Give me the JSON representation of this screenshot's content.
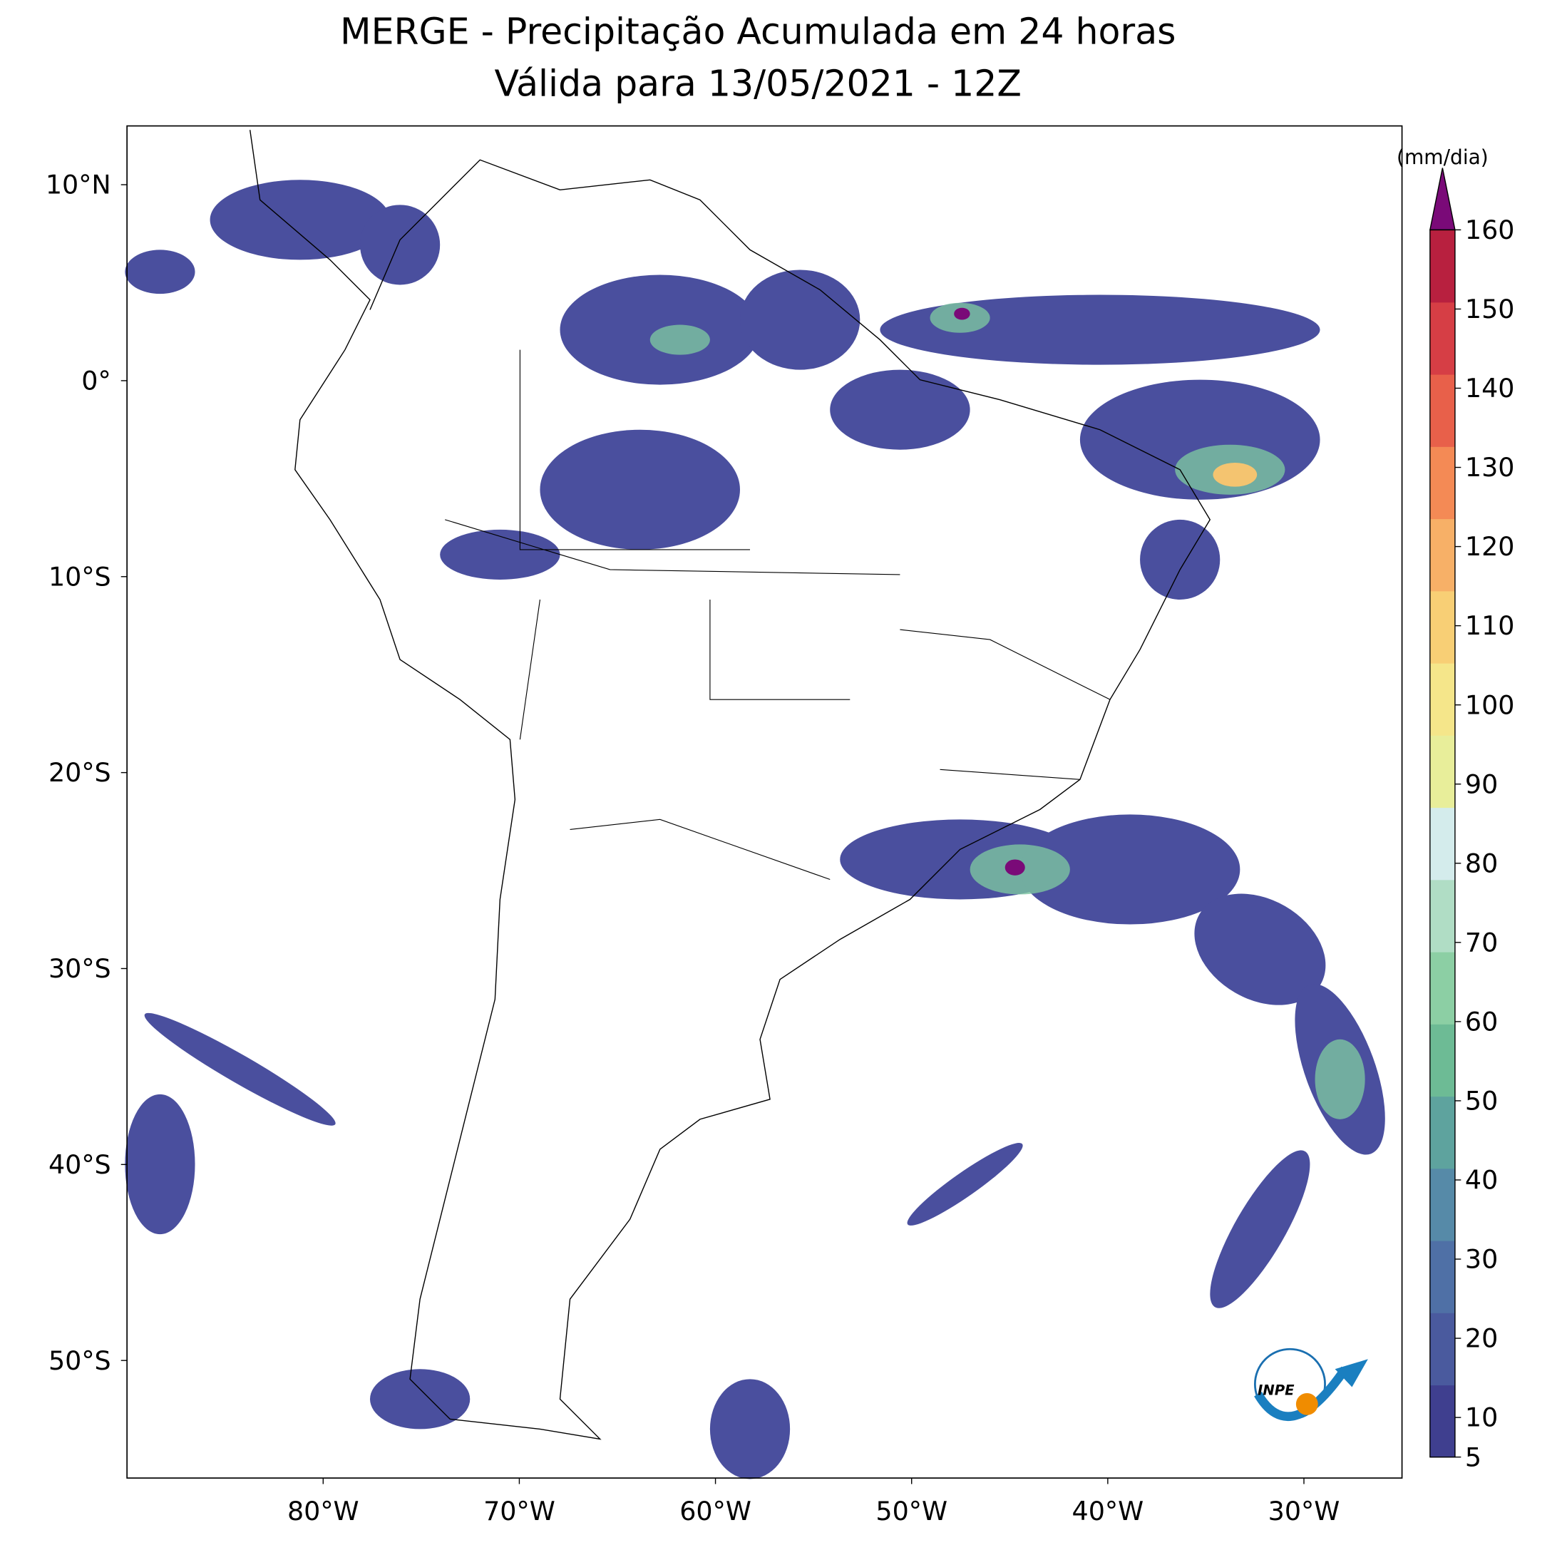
{
  "map": {
    "title": [
      "MERGE - Precipitação Acumulada em 24 horas",
      "Válida para 13/05/2021 - 12Z"
    ],
    "xlim": [
      -90,
      -25
    ],
    "ylim": [
      -56,
      13
    ],
    "lon_ticks": [
      {
        "value": -80,
        "label": "80°W"
      },
      {
        "value": -70,
        "label": "70°W"
      },
      {
        "value": -60,
        "label": "60°W"
      },
      {
        "value": -50,
        "label": "50°W"
      },
      {
        "value": -40,
        "label": "40°W"
      },
      {
        "value": -30,
        "label": "30°W"
      }
    ],
    "lat_ticks": [
      {
        "value": 10,
        "label": "10°N"
      },
      {
        "value": 0,
        "label": "0°"
      },
      {
        "value": -10,
        "label": "10°S"
      },
      {
        "value": -20,
        "label": "20°S"
      },
      {
        "value": -30,
        "label": "30°S"
      },
      {
        "value": -40,
        "label": "40°S"
      },
      {
        "value": -50,
        "label": "50°S"
      }
    ],
    "colorbar": {
      "label": "(mm/dia)",
      "range": [
        5,
        160
      ],
      "ticks": [
        5,
        10,
        20,
        30,
        40,
        50,
        60,
        70,
        80,
        90,
        100,
        110,
        120,
        130,
        140,
        150,
        160
      ],
      "colors": [
        "#3f3f8f",
        "#4a5a9e",
        "#4f70a6",
        "#568aa8",
        "#5ea39e",
        "#6dbb95",
        "#8ccfa4",
        "#b0ddc5",
        "#d4ecec",
        "#e8ee9a",
        "#f5e68a",
        "#f8cf75",
        "#f7b067",
        "#f48a55",
        "#e8604a",
        "#d63e45",
        "#b8203f"
      ],
      "extend_color": "#7a0a78"
    },
    "logo": "INPE"
  }
}
